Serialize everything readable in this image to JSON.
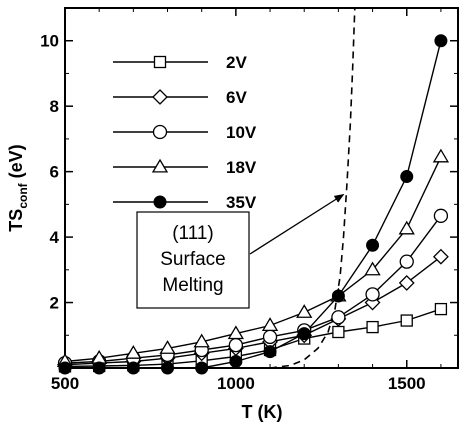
{
  "chart_data": {
    "type": "line",
    "xlabel": "T (K)",
    "ylabel_main": "TS",
    "ylabel_sub": "conf",
    "ylabel_unit": " (eV)",
    "xlim": [
      500,
      1650
    ],
    "ylim": [
      0,
      11
    ],
    "xticks": [
      500,
      1000,
      1500
    ],
    "xtick_labels": [
      "500",
      "1000",
      "1500"
    ],
    "yticks": [
      2,
      4,
      6,
      8,
      10
    ],
    "ytick_labels": [
      "2",
      "4",
      "6",
      "8",
      "10"
    ],
    "legend_position": "top-left",
    "grid": false,
    "series": [
      {
        "name": "2V",
        "marker": "square",
        "x": [
          500,
          600,
          700,
          800,
          900,
          1000,
          1100,
          1200,
          1300,
          1400,
          1500,
          1600
        ],
        "y": [
          0.05,
          0.06,
          0.08,
          0.12,
          0.22,
          0.35,
          0.55,
          0.9,
          1.1,
          1.25,
          1.45,
          1.8
        ]
      },
      {
        "name": "6V",
        "marker": "diamond",
        "x": [
          500,
          600,
          700,
          800,
          900,
          1000,
          1100,
          1200,
          1300,
          1400,
          1500,
          1600
        ],
        "y": [
          0.1,
          0.15,
          0.2,
          0.3,
          0.45,
          0.6,
          0.8,
          1.0,
          1.5,
          2.0,
          2.6,
          3.4
        ]
      },
      {
        "name": "10V",
        "marker": "circle-open",
        "x": [
          500,
          600,
          700,
          800,
          900,
          1000,
          1100,
          1200,
          1300,
          1400,
          1500,
          1600
        ],
        "y": [
          0.15,
          0.2,
          0.3,
          0.4,
          0.55,
          0.7,
          0.95,
          1.15,
          1.55,
          2.25,
          3.25,
          4.65
        ]
      },
      {
        "name": "18V",
        "marker": "triangle",
        "x": [
          500,
          600,
          700,
          800,
          900,
          1000,
          1100,
          1200,
          1300,
          1400,
          1500,
          1600
        ],
        "y": [
          0.2,
          0.3,
          0.45,
          0.6,
          0.8,
          1.05,
          1.3,
          1.7,
          2.2,
          3.0,
          4.25,
          6.45
        ]
      },
      {
        "name": "35V",
        "marker": "circle-filled",
        "x": [
          500,
          600,
          700,
          800,
          900,
          1000,
          1100,
          1200,
          1300,
          1400,
          1500,
          1600
        ],
        "y": [
          0.0,
          0.0,
          0.0,
          0.0,
          0.0,
          0.2,
          0.5,
          1.05,
          2.2,
          3.75,
          5.85,
          10.0
        ]
      }
    ],
    "dashed_curve": {
      "x": [
        1100,
        1160,
        1200,
        1240,
        1270,
        1290,
        1305,
        1315,
        1325,
        1335,
        1342,
        1348
      ],
      "y": [
        0.0,
        0.08,
        0.25,
        0.6,
        1.1,
        1.8,
        2.8,
        4.0,
        5.6,
        7.5,
        9.2,
        11.0
      ]
    },
    "annotation": {
      "lines": [
        "(111)",
        "Surface",
        "Melting"
      ],
      "arrow_target": {
        "x": 1315,
        "y": 5.3
      }
    }
  }
}
